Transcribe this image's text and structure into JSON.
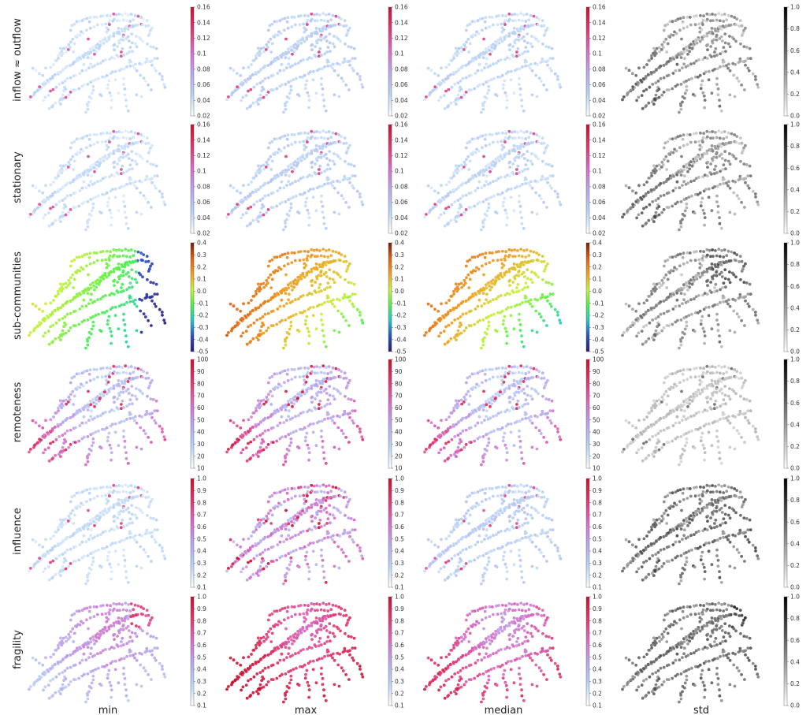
{
  "chart_data": {
    "type": "scatter",
    "description_free": true,
    "columns": [
      "min",
      "max",
      "median",
      "std"
    ],
    "rows": [
      {
        "label": "inflow ≈ outflow",
        "key": "inflow",
        "colorbar": {
          "ticks": [
            "0.16",
            "0.14",
            "0.12",
            "0.1",
            "0.08",
            "0.06",
            "0.04",
            "0.02"
          ],
          "range": [
            0.02,
            0.16
          ]
        },
        "std_colorbar": {
          "ticks": [
            "1.0",
            "0.8",
            "0.6",
            "0.4",
            "0.2",
            "0.0"
          ],
          "range": [
            0,
            1
          ]
        }
      },
      {
        "label": "stationary",
        "key": "stationary",
        "colorbar": {
          "ticks": [
            "0.16",
            "0.14",
            "0.12",
            "0.1",
            "0.08",
            "0.06",
            "0.04",
            "0.02"
          ],
          "range": [
            0.02,
            0.16
          ]
        },
        "std_colorbar": {
          "ticks": [
            "1.0",
            "0.8",
            "0.6",
            "0.4",
            "0.2",
            "0.0"
          ],
          "range": [
            0,
            1
          ]
        }
      },
      {
        "label": "sub-communities",
        "key": "subcomm",
        "colorbar": {
          "ticks": [
            "0.4",
            "0.3",
            "0.2",
            "0.1",
            "0.0",
            "-0.1",
            "-0.2",
            "-0.3",
            "-0.4",
            "-0.5"
          ],
          "range": [
            -0.5,
            0.4
          ]
        },
        "std_colorbar": {
          "ticks": [
            "1.0",
            "0.8",
            "0.6",
            "0.4",
            "0.2",
            "0.0"
          ],
          "range": [
            0,
            1
          ]
        }
      },
      {
        "label": "remoteness",
        "key": "remote",
        "colorbar": {
          "ticks": [
            "100",
            "90",
            "80",
            "70",
            "60",
            "50",
            "40",
            "30",
            "20",
            "10"
          ],
          "range": [
            10,
            100
          ]
        },
        "std_colorbar": {
          "ticks": [
            "1.0",
            "0.8",
            "0.6",
            "0.4",
            "0.2",
            "0.0"
          ],
          "range": [
            0,
            1
          ]
        }
      },
      {
        "label": "influence",
        "key": "influence",
        "colorbar": {
          "ticks": [
            "1.0",
            "0.9",
            "0.8",
            "0.7",
            "0.6",
            "0.5",
            "0.4",
            "0.3",
            "0.2",
            "0.1"
          ],
          "range": [
            0.1,
            1.0
          ]
        },
        "std_colorbar": {
          "ticks": [
            "1.0",
            "0.8",
            "0.6",
            "0.4",
            "0.2",
            "0.0"
          ],
          "range": [
            0,
            1
          ]
        }
      },
      {
        "label": "fragility",
        "key": "fragility",
        "colorbar": {
          "ticks": [
            "1.0",
            "0.9",
            "0.8",
            "0.7",
            "0.6",
            "0.5",
            "0.4",
            "0.3",
            "0.2",
            "0.1"
          ],
          "range": [
            0.1,
            1.0
          ]
        },
        "std_colorbar": {
          "ticks": [
            "1.0",
            "0.8",
            "0.6",
            "0.4",
            "0.2",
            "0.0"
          ],
          "range": [
            0,
            1
          ]
        }
      }
    ],
    "colormaps": {
      "sequential": [
        "#ffffff",
        "#b8d4f5",
        "#b9a6ec",
        "#d86ac8",
        "#e0356b",
        "#c8102e"
      ],
      "diverging": [
        "#2a1a78",
        "#2b4fc6",
        "#1fc7c7",
        "#4ff04a",
        "#c8f03a",
        "#f0a020",
        "#e06010",
        "#7a1a0a"
      ],
      "gray": [
        "#ffffff",
        "#000000"
      ]
    }
  }
}
